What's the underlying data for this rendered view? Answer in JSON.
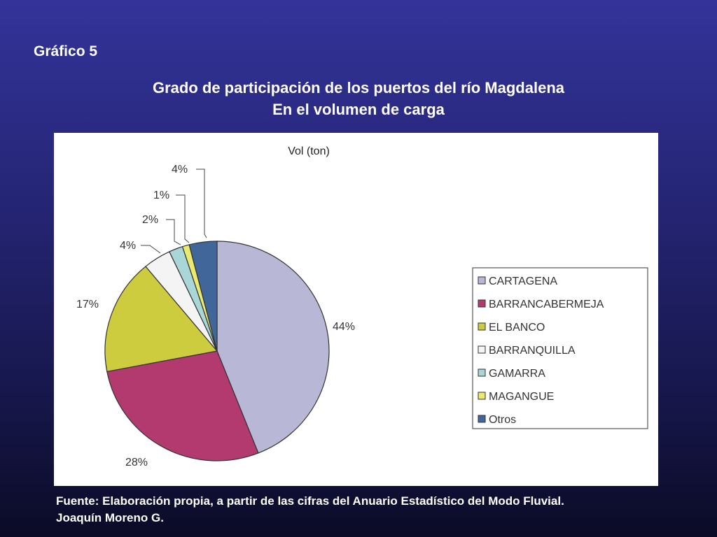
{
  "slide": {
    "label": "Gráfico 5",
    "title_line1": "Grado de participación de los puertos del río Magdalena",
    "title_line2": "En el volumen de carga",
    "source_line1": "Fuente: Elaboración propia, a partir de las cifras del Anuario Estadístico del Modo Fluvial.",
    "source_line2": "Joaquín Moreno G."
  },
  "chart_data": {
    "type": "pie",
    "title": "Vol (ton)",
    "legend_position": "right",
    "slices": [
      {
        "name": "CARTAGENA",
        "value": 44,
        "label": "44%",
        "color": "#b8b8d6"
      },
      {
        "name": "BARRANCABERMEJA",
        "value": 28,
        "label": "28%",
        "color": "#b23a6e"
      },
      {
        "name": "EL BANCO",
        "value": 17,
        "label": "17%",
        "color": "#cccc3e"
      },
      {
        "name": "BARRANQUILLA",
        "value": 4,
        "label": "4%",
        "color": "#f4f4f4"
      },
      {
        "name": "GAMARRA",
        "value": 2,
        "label": "2%",
        "color": "#a9d6d6"
      },
      {
        "name": "MAGANGUE",
        "value": 1,
        "label": "1%",
        "color": "#eaea70"
      },
      {
        "name": "Otros",
        "value": 4,
        "label": "4%",
        "color": "#41679a"
      }
    ]
  }
}
